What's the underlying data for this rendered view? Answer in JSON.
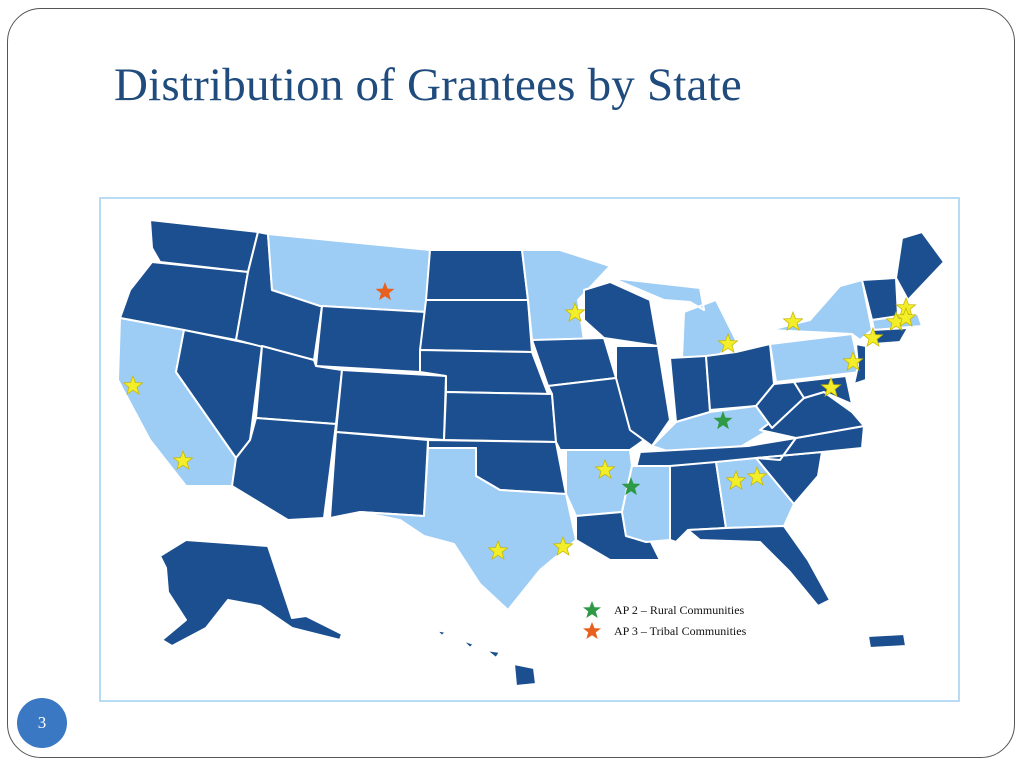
{
  "slide": {
    "title": "Distribution of Grantees by State",
    "page_number": "3"
  },
  "colors": {
    "title": "#1f4b7d",
    "state_dark": "#1b4f8f",
    "state_light": "#9dcdf5",
    "state_border": "#ffffff",
    "star_default": "#f3ee2a",
    "star_rural": "#2e9a45",
    "star_tribal": "#e8601d",
    "page_badge": "#3b78c4",
    "map_border": "#b9dcf5"
  },
  "legend": {
    "items": [
      {
        "label": "AP 2 – Rural Communities",
        "icon": "green-star-icon"
      },
      {
        "label": "AP 3 – Tribal Communities",
        "icon": "orange-star-icon"
      }
    ]
  },
  "map": {
    "light_states": [
      "Montana",
      "Minnesota",
      "Michigan",
      "New York",
      "Pennsylvania",
      "California",
      "Texas",
      "Arkansas",
      "Mississippi",
      "Georgia",
      "Kentucky",
      "Massachusetts"
    ],
    "markers": [
      {
        "state": "California",
        "type": "grantee"
      },
      {
        "state": "California",
        "type": "grantee"
      },
      {
        "state": "Montana",
        "type": "tribal"
      },
      {
        "state": "Minnesota",
        "type": "grantee"
      },
      {
        "state": "Michigan",
        "type": "grantee"
      },
      {
        "state": "Kentucky",
        "type": "rural"
      },
      {
        "state": "Arkansas",
        "type": "grantee"
      },
      {
        "state": "Mississippi",
        "type": "rural"
      },
      {
        "state": "Texas",
        "type": "grantee"
      },
      {
        "state": "Texas",
        "type": "grantee"
      },
      {
        "state": "Georgia",
        "type": "grantee"
      },
      {
        "state": "Georgia",
        "type": "grantee"
      },
      {
        "state": "New York",
        "type": "grantee"
      },
      {
        "state": "New Jersey",
        "type": "grantee"
      },
      {
        "state": "Maryland",
        "type": "grantee"
      },
      {
        "state": "Connecticut",
        "type": "grantee"
      },
      {
        "state": "Massachusetts",
        "type": "grantee"
      },
      {
        "state": "Massachusetts",
        "type": "grantee"
      },
      {
        "state": "Rhode Island",
        "type": "grantee"
      }
    ]
  }
}
